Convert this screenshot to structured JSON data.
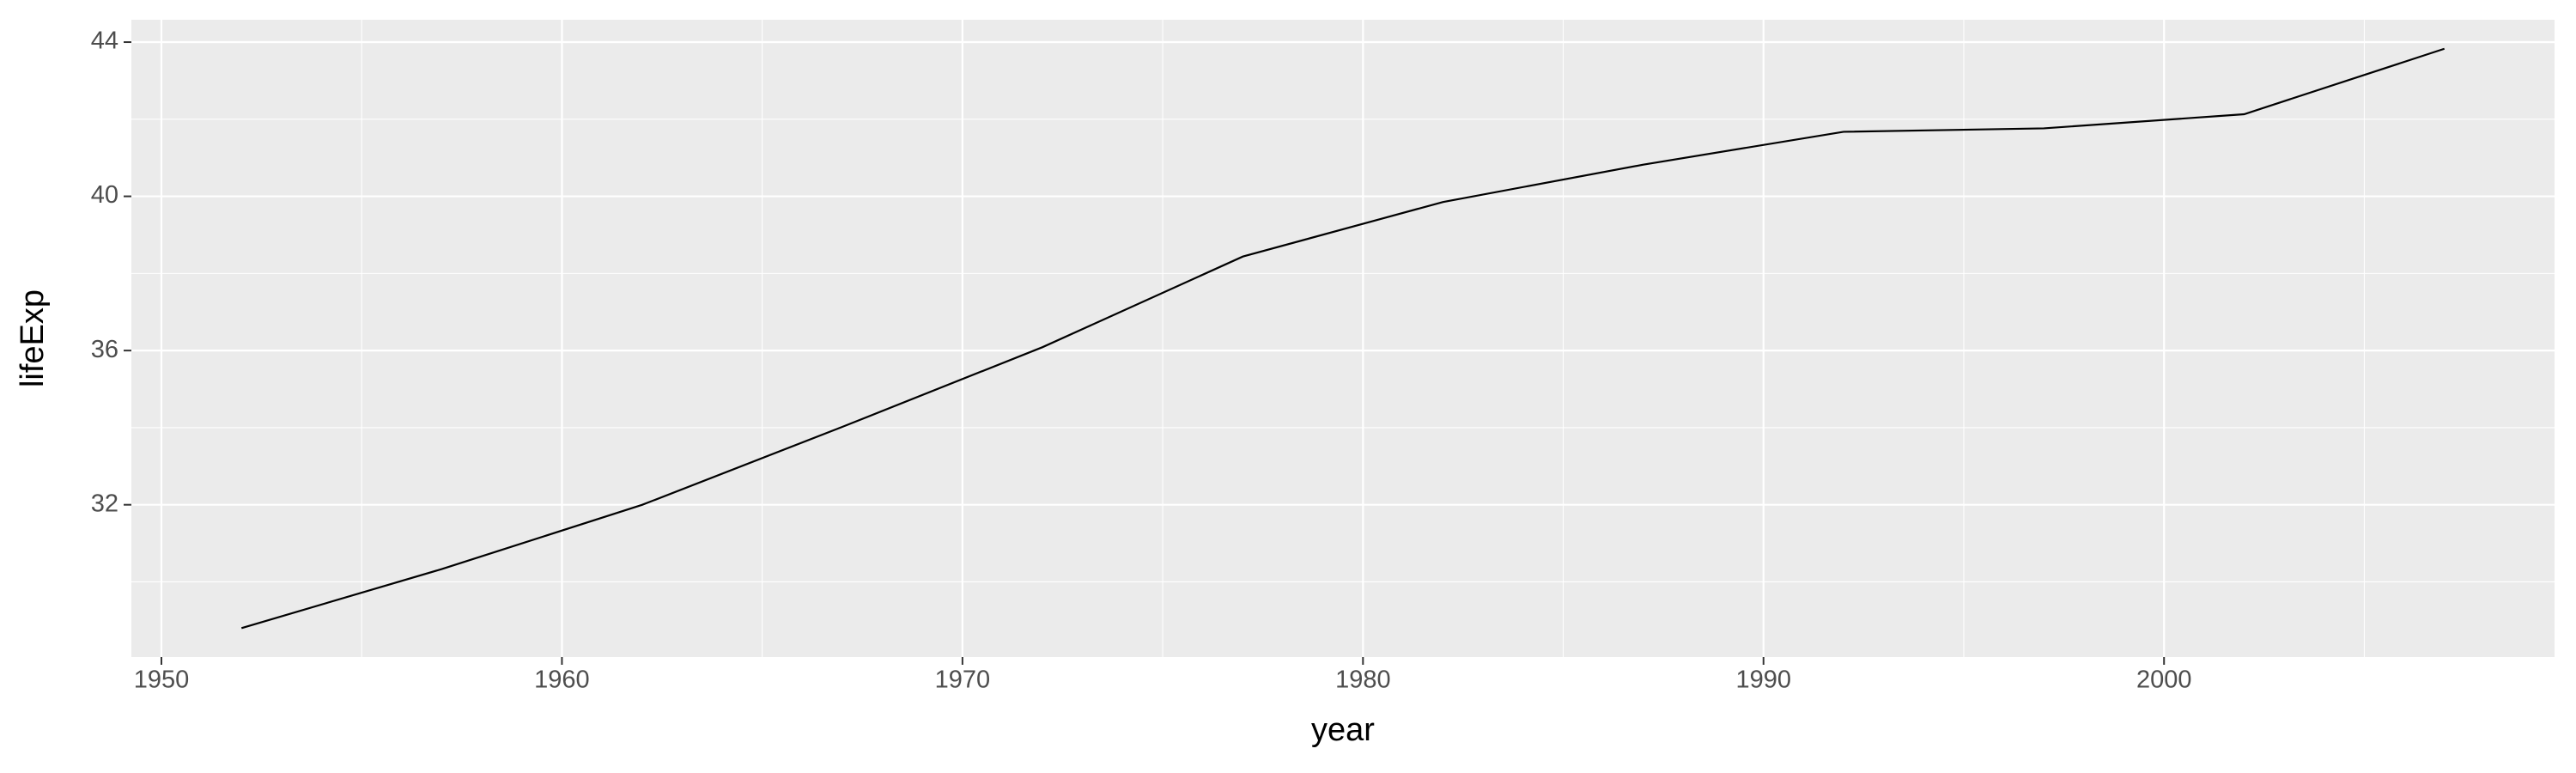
{
  "chart_data": {
    "type": "line",
    "x_label": "year",
    "y_label": "lifeExp",
    "x": [
      1952,
      1957,
      1962,
      1967,
      1972,
      1977,
      1982,
      1987,
      1992,
      1997,
      2002,
      2007
    ],
    "series": [
      {
        "color": "#000000",
        "values": [
          28.801,
          30.332,
          31.997,
          34.02,
          36.088,
          38.438,
          39.854,
          40.822,
          41.674,
          41.763,
          42.129,
          43.828
        ]
      }
    ],
    "xlim": [
      1949.25,
      2009.75
    ],
    "xticks": [
      1950,
      1960,
      1970,
      1980,
      1990,
      2000
    ],
    "ylim": [
      28.05,
      44.58
    ],
    "yticks": [
      32,
      36,
      40,
      44
    ],
    "grid": true,
    "minor_grid": true
  }
}
